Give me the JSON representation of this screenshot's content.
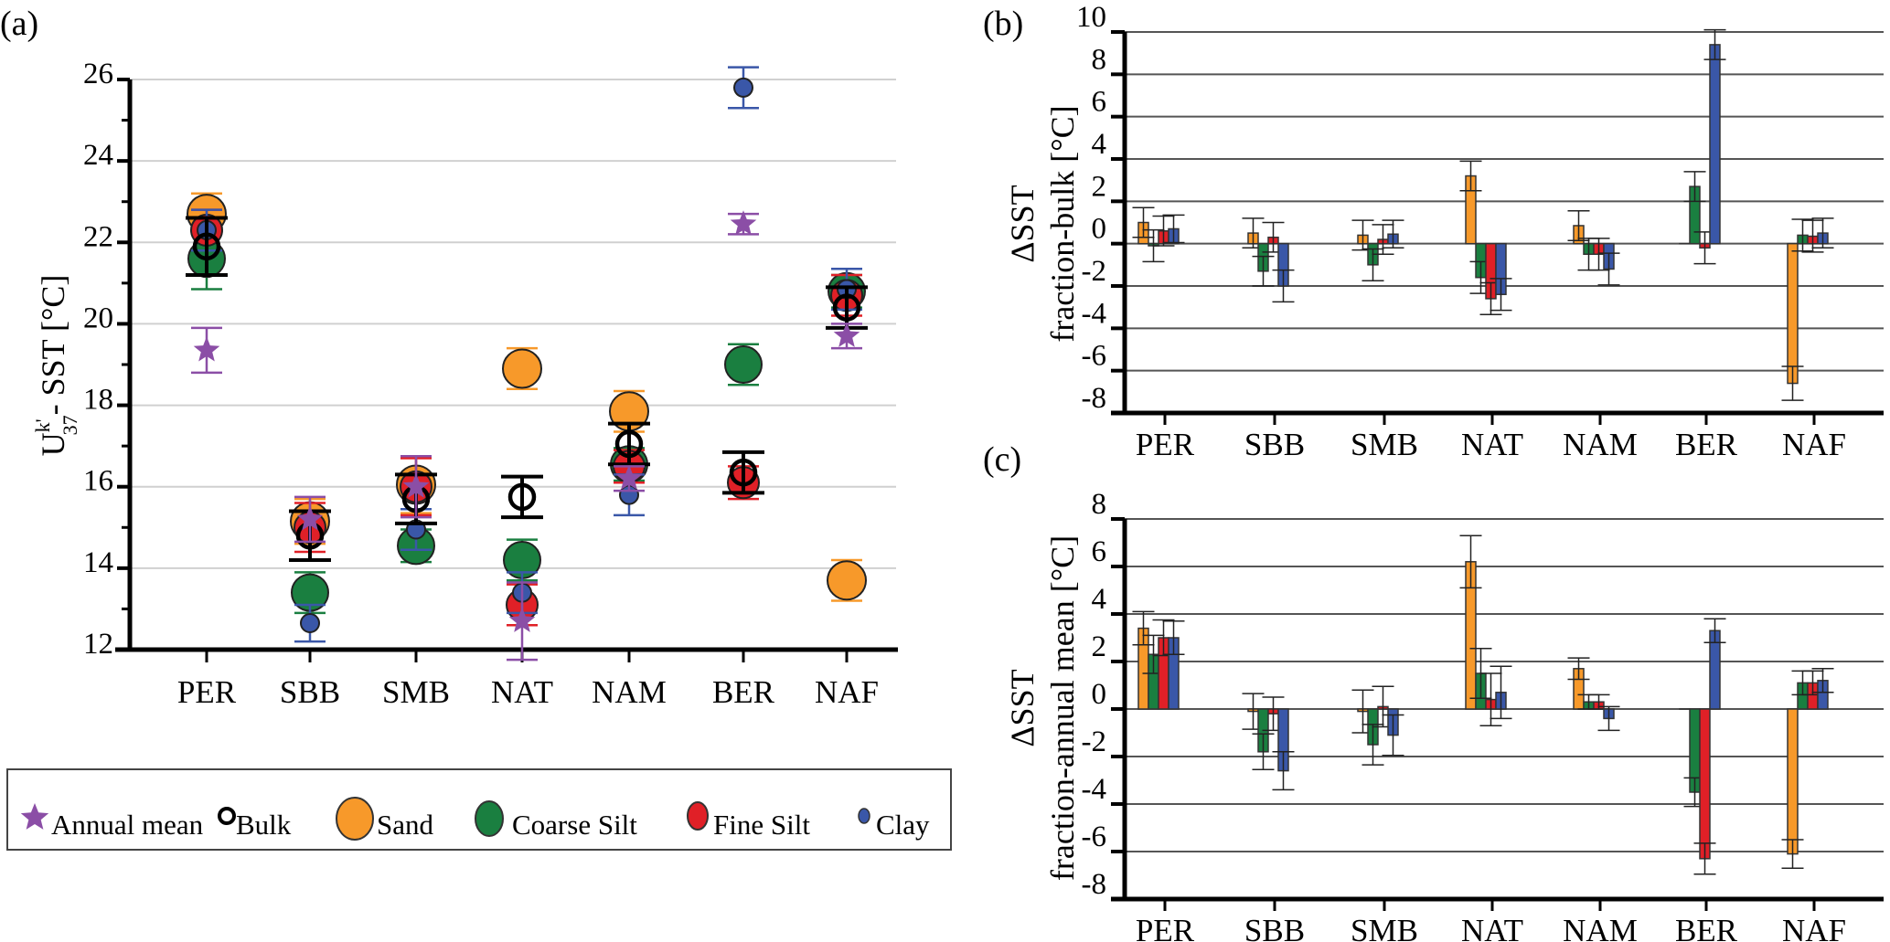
{
  "figure": {
    "series_styles": {
      "annual_mean": {
        "name": "Annual mean",
        "color": "#8b4ea6",
        "marker": "star"
      },
      "bulk": {
        "name": "Bulk",
        "color": "#000000",
        "marker": "open-circle"
      },
      "sand": {
        "name": "Sand",
        "color": "#f7992a",
        "marker": "circle"
      },
      "coarse_silt": {
        "name": "Coarse Silt",
        "color": "#1a7f40",
        "marker": "circle"
      },
      "fine_silt": {
        "name": "Fine Silt",
        "color": "#e02027",
        "marker": "circle"
      },
      "clay": {
        "name": "Clay",
        "color": "#3a57a8",
        "marker": "circle"
      }
    },
    "legend": {
      "items": [
        "Annual mean",
        "Bulk",
        "Sand",
        "Coarse Silt",
        "Fine Silt",
        "Clay"
      ]
    }
  },
  "chart_data": [
    {
      "id": "a",
      "panel_label": "(a)",
      "type": "scatter",
      "title": "",
      "xlabel": "",
      "ylabel_main": "U",
      "ylabel_sup": "k'",
      "ylabel_sub": "37",
      "ylabel_rest": "- SST [°C]",
      "categories": [
        "PER",
        "SBB",
        "SMB",
        "NAT",
        "NAM",
        "BER",
        "NAF"
      ],
      "ylim": [
        12,
        26
      ],
      "yticks": [
        12,
        14,
        16,
        18,
        20,
        22,
        24,
        26
      ],
      "ytick_labels": [
        "12",
        "14",
        "16",
        "18",
        "20",
        "22",
        "24",
        "26"
      ],
      "grid": true,
      "legend_position": "bottom",
      "series": [
        {
          "key": "sand",
          "name": "Sand",
          "values": [
            22.7,
            15.15,
            16.05,
            18.9,
            17.85,
            null,
            13.7
          ],
          "errors": [
            0.5,
            0.55,
            0.7,
            0.5,
            0.5,
            null,
            0.5
          ]
        },
        {
          "key": "coarse_silt",
          "name": "Coarse Silt",
          "values": [
            21.6,
            13.4,
            14.55,
            14.2,
            16.55,
            19.0,
            20.8
          ],
          "errors": [
            0.75,
            0.5,
            0.4,
            0.5,
            0.4,
            0.5,
            0.4
          ]
        },
        {
          "key": "fine_silt",
          "name": "Fine Silt",
          "values": [
            22.3,
            15.0,
            16.0,
            13.1,
            16.5,
            16.1,
            20.7
          ],
          "errors": [
            0.5,
            0.6,
            0.7,
            0.5,
            0.4,
            0.4,
            0.5
          ]
        },
        {
          "key": "clay",
          "name": "Clay",
          "values": [
            22.3,
            12.65,
            14.95,
            13.4,
            15.8,
            25.8,
            20.85
          ],
          "errors": [
            0.5,
            0.45,
            0.5,
            0.5,
            0.5,
            0.5,
            0.5
          ]
        },
        {
          "key": "bulk",
          "name": "Bulk",
          "values": [
            21.9,
            14.8,
            15.7,
            15.75,
            17.05,
            16.35,
            20.4
          ],
          "errors": [
            0.7,
            0.6,
            0.6,
            0.5,
            0.5,
            0.5,
            0.5
          ]
        },
        {
          "key": "annual_mean",
          "name": "Annual mean",
          "values": [
            19.35,
            15.2,
            16.0,
            12.7,
            16.2,
            22.45,
            19.7
          ],
          "errors": [
            0.55,
            0.55,
            0.75,
            0.95,
            0.3,
            0.25,
            0.3
          ]
        }
      ]
    },
    {
      "id": "b",
      "panel_label": "(b)",
      "type": "bar",
      "title": "",
      "xlabel": "",
      "ylabel_line1": "ΔSST",
      "ylabel_line2": "fraction-bulk [°C]",
      "categories": [
        "PER",
        "SBB",
        "SMB",
        "NAT",
        "NAM",
        "BER",
        "NAF"
      ],
      "ylim": [
        -8,
        10
      ],
      "yticks": [
        -8,
        -6,
        -4,
        -2,
        0,
        2,
        4,
        6,
        8,
        10
      ],
      "ytick_labels": [
        "-8",
        "-6",
        "-4",
        "-2",
        "0",
        "2",
        "4",
        "6",
        "8",
        "10"
      ],
      "grid": true,
      "series": [
        {
          "key": "sand",
          "name": "Sand",
          "values": [
            1.0,
            0.5,
            0.4,
            3.2,
            0.85,
            0.0,
            -6.6
          ],
          "errors": [
            0.7,
            0.7,
            0.7,
            0.7,
            0.7,
            0.0,
            0.8
          ]
        },
        {
          "key": "coarse_silt",
          "name": "Coarse Silt",
          "values": [
            -0.1,
            -1.3,
            -1.0,
            -1.6,
            -0.5,
            2.7,
            0.4
          ],
          "errors": [
            0.75,
            0.7,
            0.75,
            0.75,
            0.75,
            0.7,
            0.75
          ]
        },
        {
          "key": "fine_silt",
          "name": "Fine Silt",
          "values": [
            0.6,
            0.3,
            0.2,
            -2.6,
            -0.5,
            -0.2,
            0.35
          ],
          "errors": [
            0.7,
            0.7,
            0.7,
            0.75,
            0.75,
            0.75,
            0.75
          ]
        },
        {
          "key": "clay",
          "name": "Clay",
          "values": [
            0.7,
            -2.0,
            0.45,
            -2.4,
            -1.2,
            9.4,
            0.5
          ],
          "errors": [
            0.65,
            0.75,
            0.65,
            0.75,
            0.75,
            0.7,
            0.7
          ]
        }
      ]
    },
    {
      "id": "c",
      "panel_label": "(c)",
      "type": "bar",
      "title": "",
      "xlabel": "",
      "ylabel_line1": "ΔSST",
      "ylabel_line2": "fraction-annual mean [°C]",
      "categories": [
        "PER",
        "SBB",
        "SMB",
        "NAT",
        "NAM",
        "BER",
        "NAF"
      ],
      "ylim": [
        -8,
        8
      ],
      "yticks": [
        -8,
        -6,
        -4,
        -2,
        0,
        2,
        4,
        6,
        8
      ],
      "ytick_labels": [
        "-8",
        "-6",
        "-4",
        "-2",
        "0",
        "2",
        "4",
        "6",
        "8"
      ],
      "grid": true,
      "series": [
        {
          "key": "sand",
          "name": "Sand",
          "values": [
            3.4,
            -0.1,
            -0.1,
            6.2,
            1.7,
            0.0,
            -6.1
          ],
          "errors": [
            0.7,
            0.75,
            0.9,
            1.1,
            0.45,
            0.0,
            0.6
          ]
        },
        {
          "key": "coarse_silt",
          "name": "Coarse Silt",
          "values": [
            2.3,
            -1.8,
            -1.5,
            1.5,
            0.3,
            -3.5,
            1.1
          ],
          "errors": [
            0.8,
            0.75,
            0.85,
            1.05,
            0.3,
            0.6,
            0.5
          ]
        },
        {
          "key": "fine_silt",
          "name": "Fine Silt",
          "values": [
            3.0,
            -0.2,
            0.1,
            0.4,
            0.3,
            -6.3,
            1.1
          ],
          "errors": [
            0.75,
            0.7,
            0.85,
            1.1,
            0.3,
            0.65,
            0.5
          ]
        },
        {
          "key": "clay",
          "name": "Clay",
          "values": [
            3.0,
            -2.6,
            -1.1,
            0.7,
            -0.4,
            3.3,
            1.2
          ],
          "errors": [
            0.7,
            0.8,
            0.85,
            1.1,
            0.5,
            0.5,
            0.5
          ]
        }
      ]
    }
  ]
}
